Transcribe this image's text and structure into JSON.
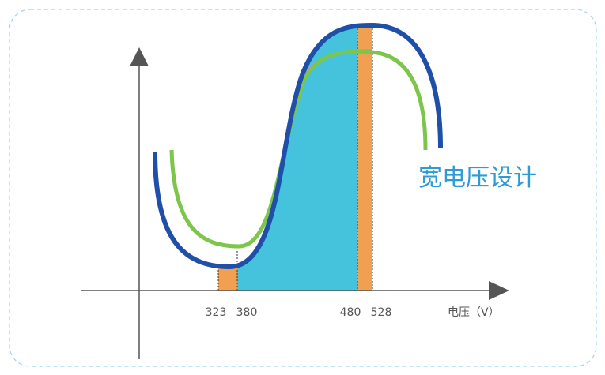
{
  "diagram": {
    "title": "宽电压设计",
    "x_axis_label": "电压（V）",
    "ticks": [
      "323",
      "380",
      "480",
      "528"
    ],
    "colors": {
      "frame_border": "#9fd4ec",
      "axis": "#555555",
      "curve_wide": "#1f4fa8",
      "curve_standard": "#7cc64b",
      "fill_main": "#45c3dc",
      "fill_band": "#f0a050",
      "fill_light": "#b8dcef",
      "title_text": "#2e9ad6"
    }
  }
}
